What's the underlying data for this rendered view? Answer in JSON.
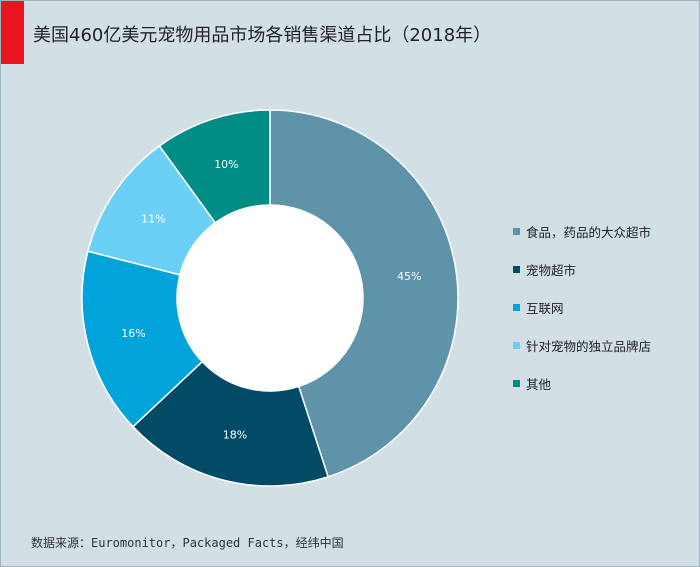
{
  "chart_data": {
    "type": "pie",
    "style": "donut",
    "title": "美国460亿美元宠物用品市场各销售渠道占比（2018年）",
    "categories": [
      "食品，药品的大众超市",
      "宠物超市",
      "互联网",
      "针对宠物的独立品牌店",
      "其他"
    ],
    "values": [
      45,
      18,
      16,
      11,
      10
    ],
    "labels": [
      "45%",
      "18%",
      "16%",
      "11%",
      "10%"
    ],
    "colors": [
      "#5e93aa",
      "#024b67",
      "#00a3da",
      "#6bd0f5",
      "#008d85"
    ],
    "legend_position": "right",
    "source": "数据来源：Euromonitor，Packaged Facts，经纬中国"
  },
  "theme": {
    "background": "#d2e0e6",
    "accent": "#e8141e"
  }
}
